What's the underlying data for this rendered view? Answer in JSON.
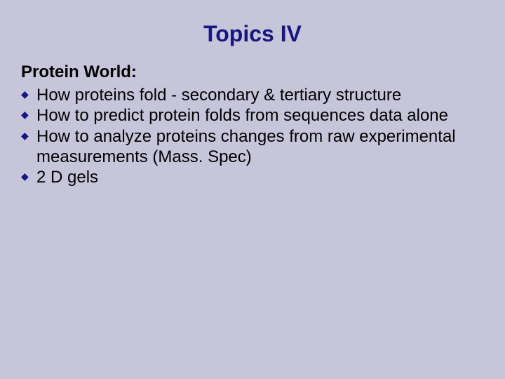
{
  "background_color": "#c7c5da",
  "title": {
    "text": "Topics IV",
    "color": "#17177f",
    "fontsize": 32,
    "fontweight": "bold",
    "align": "center"
  },
  "subheading": {
    "text": "Protein World:",
    "color": "#000000",
    "fontsize": 24,
    "fontweight": "bold"
  },
  "bullets": {
    "marker_color": "#17177f",
    "text_color": "#000000",
    "fontsize": 24,
    "items": [
      "How proteins fold - secondary & tertiary structure",
      "How to predict protein folds from sequences data alone",
      "How to analyze proteins changes from raw experimental measurements (Mass. Spec)",
      "2 D gels"
    ]
  }
}
